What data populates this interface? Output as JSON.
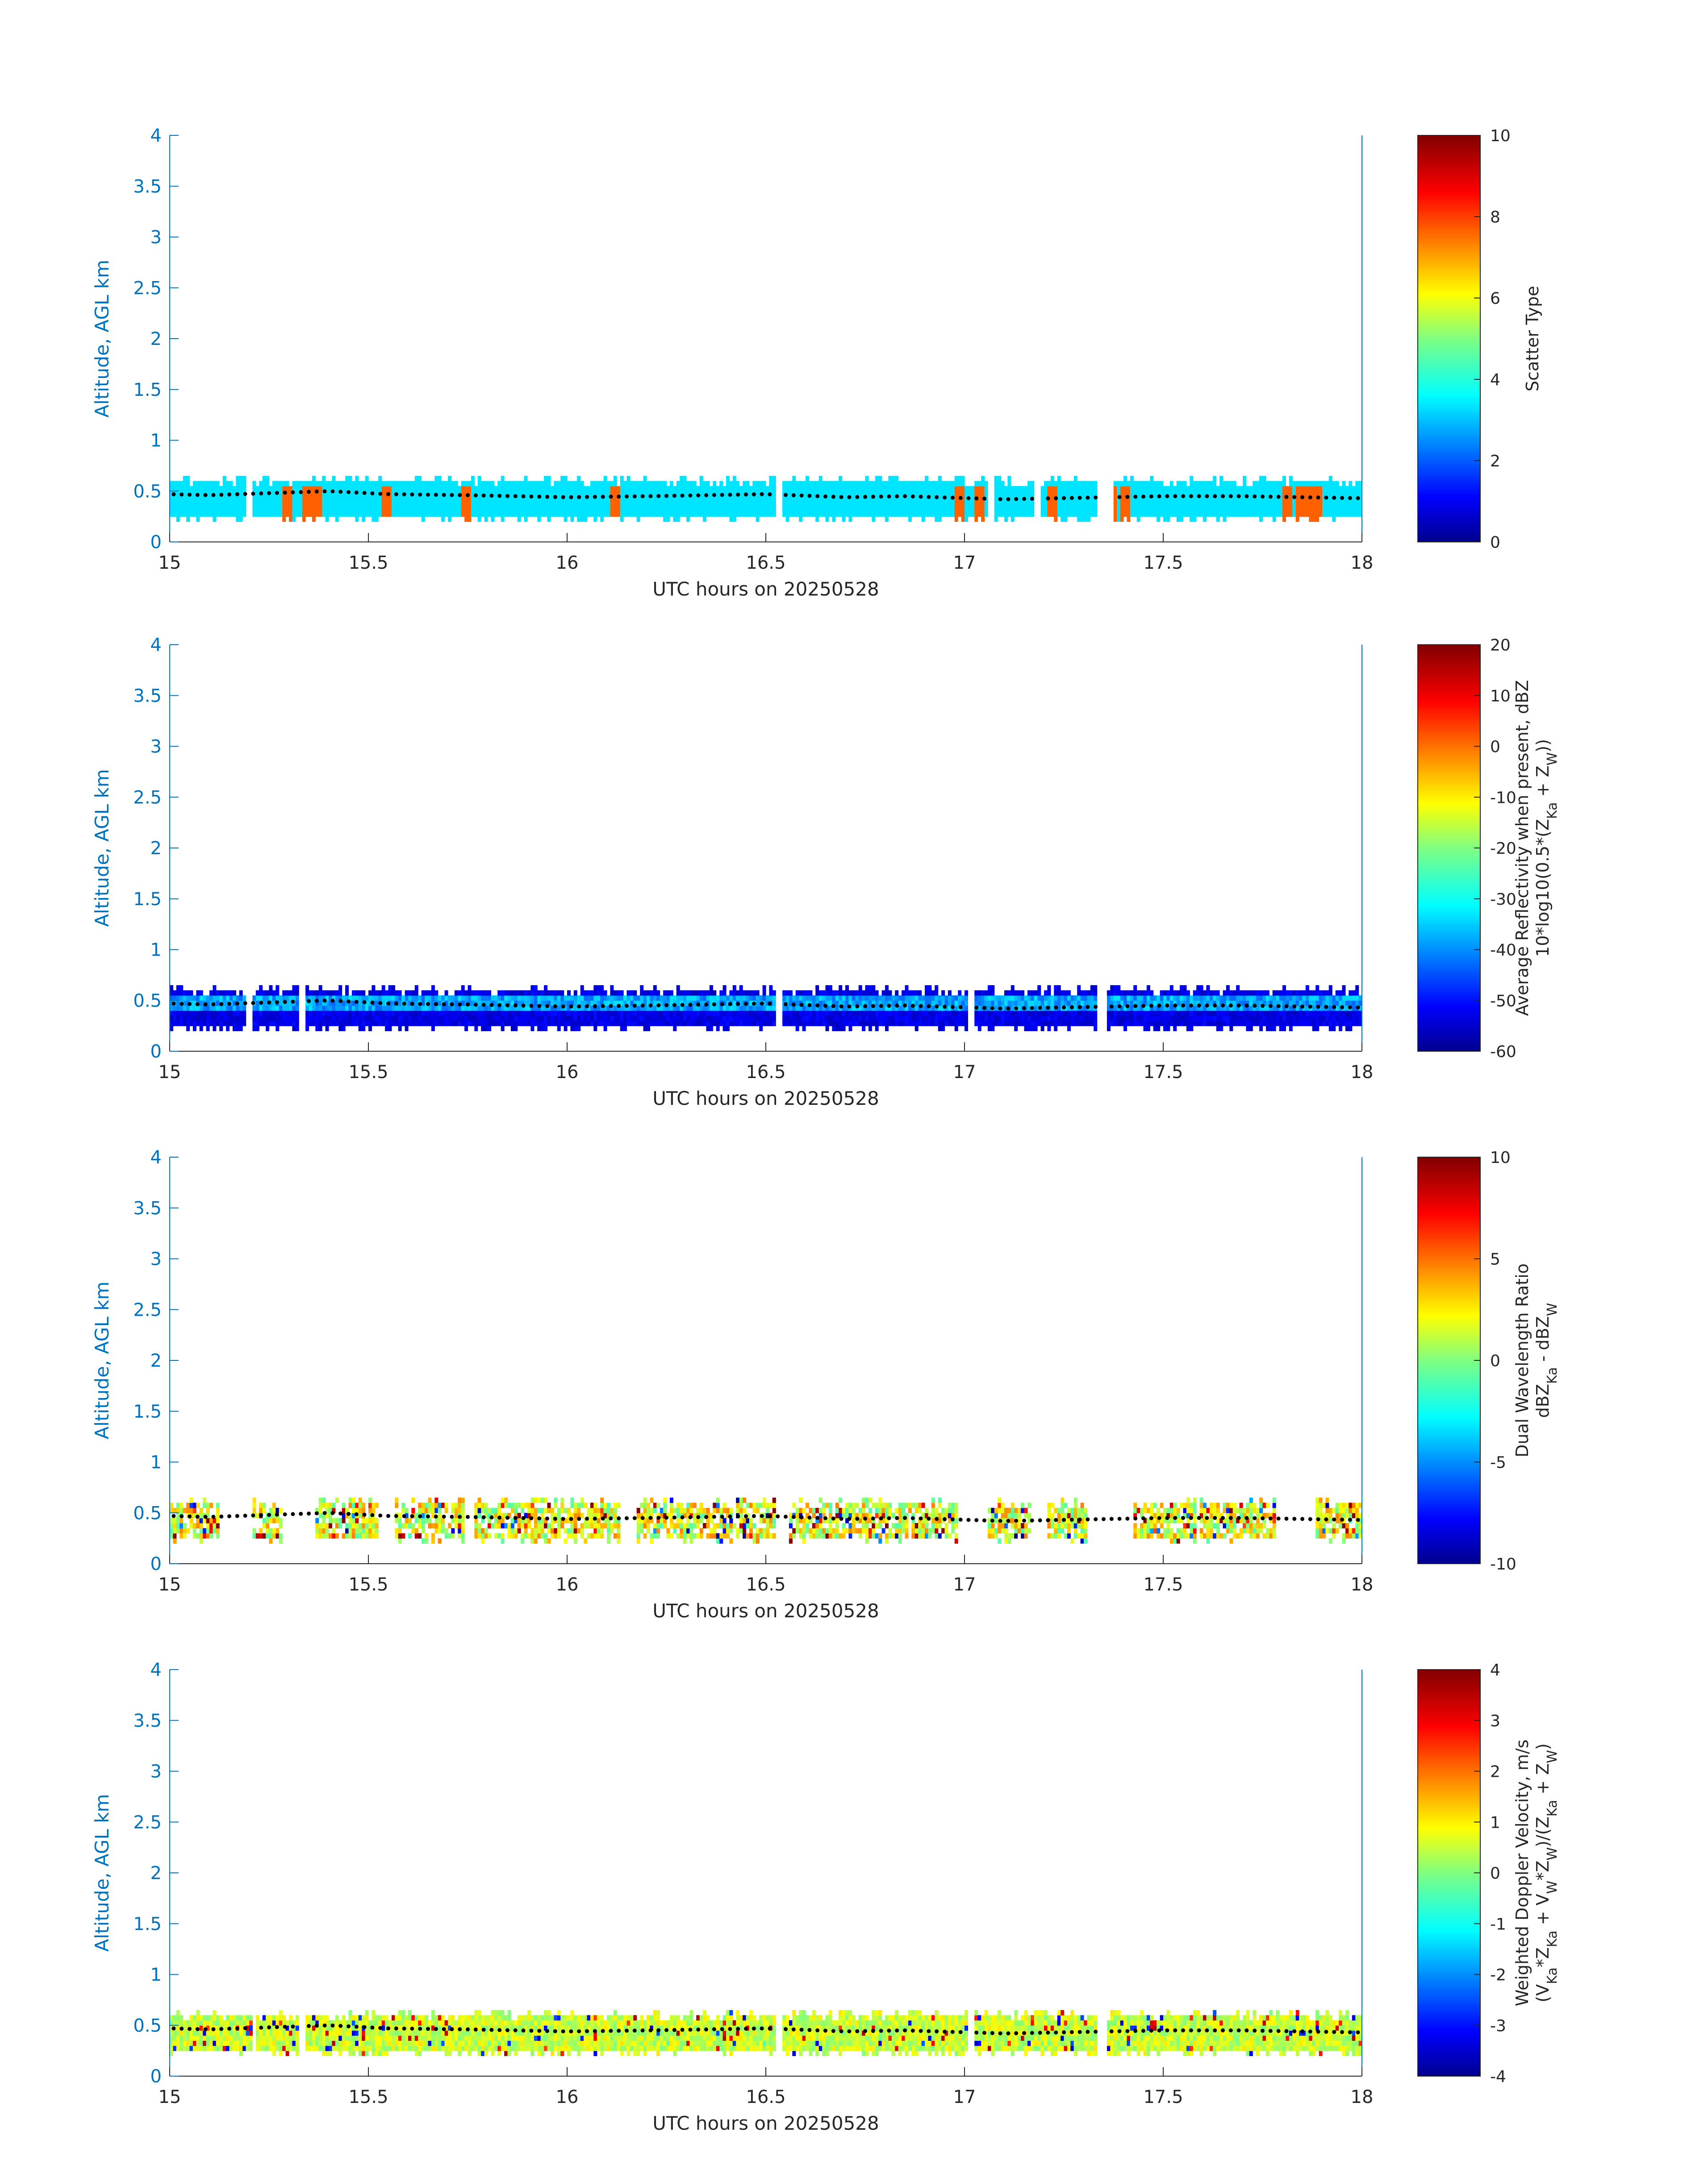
{
  "figure": {
    "common_xlabel": "UTC hours on 20250528",
    "common_ylabel": "Altitude, AGL km"
  },
  "chart_data": [
    {
      "type": "heatmap",
      "panel": "scatter-type",
      "xlabel": "UTC hours on 20250528",
      "ylabel": "Altitude, AGL km",
      "xlim": [
        15,
        18
      ],
      "ylim": [
        0,
        4
      ],
      "xticks": [
        "15",
        "15.5",
        "16",
        "16.5",
        "17",
        "17.5",
        "18"
      ],
      "yticks": [
        "0",
        "0.5",
        "1",
        "1.5",
        "2",
        "2.5",
        "3",
        "3.5",
        "4"
      ],
      "colorbar": {
        "label": [
          "Scatter Type"
        ],
        "range": [
          0,
          10
        ],
        "ticks": [
          "0",
          "2",
          "4",
          "6",
          "8",
          "10"
        ],
        "colormap": "jet"
      },
      "layer_base_km": 0.25,
      "layer_top_km": 0.6,
      "dominant_value": 3.5,
      "secondary_value": 7.8,
      "gaps_hours": [
        [
          15.19,
          15.2
        ],
        [
          16.52,
          16.54
        ],
        [
          17.05,
          17.07
        ],
        [
          17.17,
          17.19
        ],
        [
          17.33,
          17.37
        ]
      ],
      "secondary_columns_hours": [
        15.29,
        15.34,
        15.37,
        15.54,
        15.74,
        16.12,
        16.98,
        17.03,
        17.22,
        17.37,
        17.4,
        17.81,
        17.84,
        17.86,
        17.88
      ],
      "peak_altitude_dots_km": [
        0.47,
        0.46,
        0.5,
        0.47,
        0.46,
        0.44,
        0.45,
        0.47,
        0.44,
        0.45,
        0.42,
        0.45,
        0.45,
        0.43
      ],
      "peak_altitude_dots_hours": [
        15.0,
        15.1,
        15.4,
        15.55,
        15.75,
        16.0,
        16.2,
        16.5,
        16.7,
        16.85,
        17.1,
        17.5,
        17.7,
        18.0
      ]
    },
    {
      "type": "heatmap",
      "panel": "reflectivity",
      "xlabel": "UTC hours on 20250528",
      "ylabel": "Altitude, AGL km",
      "xlim": [
        15,
        18
      ],
      "ylim": [
        0,
        4
      ],
      "xticks": [
        "15",
        "15.5",
        "16",
        "16.5",
        "17",
        "17.5",
        "18"
      ],
      "yticks": [
        "0",
        "0.5",
        "1",
        "1.5",
        "2",
        "2.5",
        "3",
        "3.5",
        "4"
      ],
      "colorbar": {
        "label": [
          "Average Reflectivity when present, dBZ",
          "10*log10(0.5*(Z_Ka + Z_W))"
        ],
        "range": [
          -60,
          20
        ],
        "ticks": [
          "-60",
          "-50",
          "-40",
          "-30",
          "-20",
          "-10",
          "0",
          "10",
          "20"
        ],
        "colormap": "jet"
      },
      "layer_base_km": 0.25,
      "layer_top_km": 0.6,
      "typical_value_dBZ": -52,
      "max_value_dBZ": -32,
      "gaps_hours": [
        [
          15.19,
          15.2
        ],
        [
          15.32,
          15.34
        ],
        [
          16.52,
          16.54
        ],
        [
          17.0,
          17.02
        ],
        [
          17.33,
          17.35
        ]
      ],
      "peak_altitude_dots_km": [
        0.47,
        0.46,
        0.5,
        0.47,
        0.46,
        0.44,
        0.45,
        0.47,
        0.44,
        0.45,
        0.42,
        0.45,
        0.45,
        0.43
      ],
      "peak_altitude_dots_hours": [
        15.0,
        15.1,
        15.4,
        15.55,
        15.75,
        16.0,
        16.2,
        16.5,
        16.7,
        16.85,
        17.1,
        17.5,
        17.7,
        18.0
      ]
    },
    {
      "type": "heatmap",
      "panel": "dual-wavelength-ratio",
      "xlabel": "UTC hours on 20250528",
      "ylabel": "Altitude, AGL km",
      "xlim": [
        15,
        18
      ],
      "ylim": [
        0,
        4
      ],
      "xticks": [
        "15",
        "15.5",
        "16",
        "16.5",
        "17",
        "17.5",
        "18"
      ],
      "yticks": [
        "0",
        "0.5",
        "1",
        "1.5",
        "2",
        "2.5",
        "3",
        "3.5",
        "4"
      ],
      "colorbar": {
        "label": [
          "Dual Wavelength Ratio",
          "dBZ_Ka - dBZ_W"
        ],
        "range": [
          -10,
          10
        ],
        "ticks": [
          "-10",
          "-5",
          "0",
          "5",
          "10"
        ],
        "colormap": "jet"
      },
      "layer_base_km": 0.25,
      "layer_top_km": 0.6,
      "typical_value_dB": 2,
      "data_segments_hours": [
        [
          15.0,
          15.12
        ],
        [
          15.2,
          15.28
        ],
        [
          15.36,
          15.52
        ],
        [
          15.56,
          15.74
        ],
        [
          15.76,
          16.13
        ],
        [
          16.17,
          16.52
        ],
        [
          16.55,
          16.98
        ],
        [
          17.05,
          17.16
        ],
        [
          17.2,
          17.3
        ],
        [
          17.42,
          17.58
        ],
        [
          17.59,
          17.78
        ],
        [
          17.88,
          18.0
        ]
      ],
      "peak_altitude_dots_km": [
        0.47,
        0.46,
        0.5,
        0.47,
        0.46,
        0.44,
        0.45,
        0.47,
        0.44,
        0.45,
        0.42,
        0.45,
        0.45,
        0.43
      ],
      "peak_altitude_dots_hours": [
        15.0,
        15.1,
        15.4,
        15.55,
        15.75,
        16.0,
        16.2,
        16.5,
        16.7,
        16.85,
        17.1,
        17.5,
        17.7,
        18.0
      ]
    },
    {
      "type": "heatmap",
      "panel": "doppler-velocity",
      "xlabel": "UTC hours on 20250528",
      "ylabel": "Altitude, AGL km",
      "xlim": [
        15,
        18
      ],
      "ylim": [
        0,
        4
      ],
      "xticks": [
        "15",
        "15.5",
        "16",
        "16.5",
        "17",
        "17.5",
        "18"
      ],
      "yticks": [
        "0",
        "0.5",
        "1",
        "1.5",
        "2",
        "2.5",
        "3",
        "3.5",
        "4"
      ],
      "colorbar": {
        "label": [
          "Weighted Doppler Velocity, m/s",
          "(V_Ka*Z_Ka + V_W*Z_W)/(Z_Ka + Z_W)"
        ],
        "range": [
          -4,
          4
        ],
        "ticks": [
          "-4",
          "-3",
          "-2",
          "-1",
          "0",
          "1",
          "2",
          "3",
          "4"
        ],
        "colormap": "jet"
      },
      "layer_base_km": 0.25,
      "layer_top_km": 0.6,
      "typical_value_ms": 0.6,
      "gaps_hours": [
        [
          15.2,
          15.21
        ],
        [
          15.32,
          15.34
        ],
        [
          16.52,
          16.54
        ],
        [
          17.0,
          17.02
        ],
        [
          17.33,
          17.35
        ]
      ],
      "peak_altitude_dots_km": [
        0.47,
        0.46,
        0.5,
        0.47,
        0.46,
        0.44,
        0.45,
        0.47,
        0.44,
        0.45,
        0.42,
        0.45,
        0.45,
        0.43
      ],
      "peak_altitude_dots_hours": [
        15.0,
        15.1,
        15.4,
        15.55,
        15.75,
        16.0,
        16.2,
        16.5,
        16.7,
        16.85,
        17.1,
        17.5,
        17.7,
        18.0
      ]
    }
  ]
}
